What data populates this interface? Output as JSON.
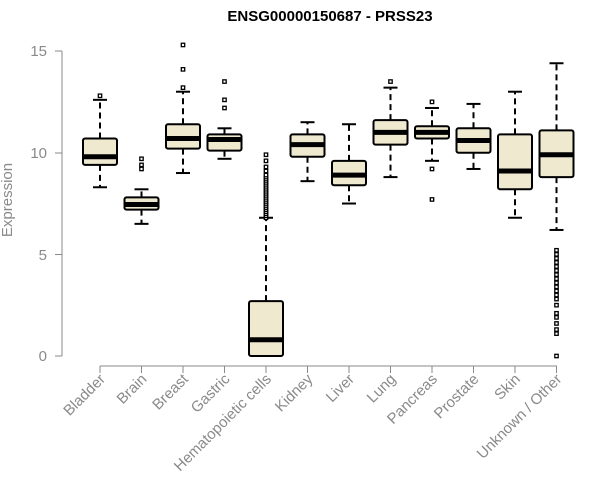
{
  "chart_data": {
    "type": "box",
    "title": "ENSG00000150687 - PRSS23",
    "xlabel": "",
    "ylabel": "Expression",
    "ylim": [
      0,
      15.5
    ],
    "yticks": [
      0,
      5,
      10,
      15
    ],
    "grid": false,
    "colors": {
      "box_fill": "#efe9d0",
      "box_stroke": "#000000",
      "axis": "#8a8a8a"
    },
    "categories": [
      "Bladder",
      "Brain",
      "Breast",
      "Gastric",
      "Hematopoietic cells",
      "Kidney",
      "Liver",
      "Lung",
      "Pancreas",
      "Prostate",
      "Skin",
      "Unknown / Other"
    ],
    "boxes": [
      {
        "min": 8.3,
        "q1": 9.4,
        "median": 9.8,
        "q3": 10.7,
        "max": 12.6,
        "outliers": [
          12.8
        ]
      },
      {
        "min": 6.5,
        "q1": 7.2,
        "median": 7.45,
        "q3": 7.8,
        "max": 8.2,
        "outliers": [
          9.2,
          9.4,
          9.7
        ]
      },
      {
        "min": 9.0,
        "q1": 10.2,
        "median": 10.7,
        "q3": 11.4,
        "max": 13.0,
        "outliers": [
          13.2,
          14.1,
          15.3
        ]
      },
      {
        "min": 9.7,
        "q1": 10.1,
        "median": 10.65,
        "q3": 10.9,
        "max": 11.2,
        "outliers": [
          12.2,
          12.6,
          13.5
        ]
      },
      {
        "min": 0.0,
        "q1": 0.0,
        "median": 0.8,
        "q3": 2.7,
        "max": 6.8,
        "outliers": [
          6.8,
          6.9,
          7.0,
          7.1,
          7.2,
          7.3,
          7.4,
          7.5,
          7.6,
          7.7,
          7.8,
          7.9,
          8.0,
          8.1,
          8.2,
          8.3,
          8.4,
          8.5,
          8.6,
          8.7,
          8.8,
          8.9,
          9.1,
          9.3,
          9.6,
          9.9
        ]
      },
      {
        "min": 8.6,
        "q1": 9.8,
        "median": 10.4,
        "q3": 10.9,
        "max": 11.5,
        "outliers": []
      },
      {
        "min": 7.5,
        "q1": 8.4,
        "median": 8.9,
        "q3": 9.6,
        "max": 11.4,
        "outliers": []
      },
      {
        "min": 8.8,
        "q1": 10.4,
        "median": 11.0,
        "q3": 11.6,
        "max": 13.2,
        "outliers": [
          13.5
        ]
      },
      {
        "min": 9.6,
        "q1": 10.7,
        "median": 11.0,
        "q3": 11.3,
        "max": 12.2,
        "outliers": [
          7.7,
          9.2,
          12.5
        ]
      },
      {
        "min": 9.2,
        "q1": 10.0,
        "median": 10.6,
        "q3": 11.2,
        "max": 12.4,
        "outliers": []
      },
      {
        "min": 6.8,
        "q1": 8.2,
        "median": 9.1,
        "q3": 10.9,
        "max": 13.0,
        "outliers": []
      },
      {
        "min": 6.2,
        "q1": 8.8,
        "median": 9.9,
        "q3": 11.1,
        "max": 14.4,
        "outliers": [
          0.0,
          1.1,
          1.3,
          1.6,
          1.9,
          2.1,
          2.5,
          2.8,
          3.0,
          3.2,
          3.4,
          3.6,
          3.8,
          4.0,
          4.2,
          4.4,
          4.6,
          4.8,
          5.0,
          5.2
        ]
      }
    ]
  }
}
